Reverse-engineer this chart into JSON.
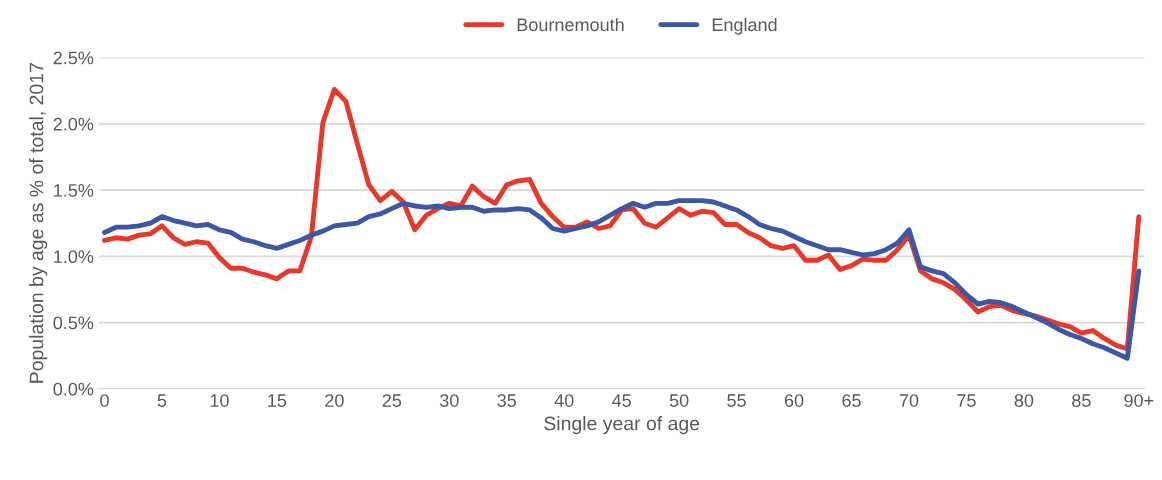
{
  "chart_data": {
    "type": "line",
    "xlabel": "Single year of age",
    "ylabel": "Population by age as % of total, 2017",
    "categories": [
      "0",
      null,
      null,
      null,
      null,
      "5",
      null,
      null,
      null,
      null,
      "10",
      null,
      null,
      null,
      null,
      "15",
      null,
      null,
      null,
      null,
      "20",
      null,
      null,
      null,
      null,
      "25",
      null,
      null,
      null,
      null,
      "30",
      null,
      null,
      null,
      null,
      "35",
      null,
      null,
      null,
      null,
      "40",
      null,
      null,
      null,
      null,
      "45",
      null,
      null,
      null,
      null,
      "50",
      null,
      null,
      null,
      null,
      "55",
      null,
      null,
      null,
      null,
      "60",
      null,
      null,
      null,
      null,
      "65",
      null,
      null,
      null,
      null,
      "70",
      null,
      null,
      null,
      null,
      "75",
      null,
      null,
      null,
      null,
      "80",
      null,
      null,
      null,
      null,
      "85",
      null,
      null,
      null,
      null,
      "90+"
    ],
    "series": [
      {
        "name": "Bournemouth",
        "color": "#e8382a",
        "values": [
          1.12,
          1.14,
          1.13,
          1.16,
          1.17,
          1.23,
          1.14,
          1.09,
          1.11,
          1.1,
          0.99,
          0.91,
          0.91,
          0.88,
          0.86,
          0.83,
          0.89,
          0.89,
          1.15,
          2.01,
          2.26,
          2.17,
          1.85,
          1.54,
          1.42,
          1.49,
          1.41,
          1.2,
          1.31,
          1.36,
          1.4,
          1.38,
          1.53,
          1.45,
          1.4,
          1.54,
          1.57,
          1.58,
          1.4,
          1.3,
          1.22,
          1.22,
          1.26,
          1.21,
          1.23,
          1.35,
          1.36,
          1.25,
          1.22,
          1.29,
          1.36,
          1.31,
          1.34,
          1.33,
          1.24,
          1.24,
          1.18,
          1.14,
          1.08,
          1.06,
          1.08,
          0.97,
          0.97,
          1.01,
          0.9,
          0.93,
          0.98,
          0.97,
          0.97,
          1.05,
          1.16,
          0.89,
          0.83,
          0.8,
          0.75,
          0.67,
          0.58,
          0.62,
          0.63,
          0.59,
          0.57,
          0.55,
          0.52,
          0.49,
          0.47,
          0.42,
          0.44,
          0.38,
          0.33,
          0.3,
          1.3
        ]
      },
      {
        "name": "England",
        "color": "#3c57a8",
        "values": [
          1.18,
          1.22,
          1.22,
          1.23,
          1.25,
          1.3,
          1.27,
          1.25,
          1.23,
          1.24,
          1.2,
          1.18,
          1.13,
          1.11,
          1.08,
          1.06,
          1.09,
          1.12,
          1.16,
          1.19,
          1.23,
          1.24,
          1.25,
          1.3,
          1.32,
          1.36,
          1.4,
          1.38,
          1.37,
          1.38,
          1.36,
          1.37,
          1.37,
          1.34,
          1.35,
          1.35,
          1.36,
          1.35,
          1.29,
          1.21,
          1.19,
          1.21,
          1.23,
          1.26,
          1.31,
          1.36,
          1.4,
          1.37,
          1.4,
          1.4,
          1.42,
          1.42,
          1.42,
          1.41,
          1.38,
          1.35,
          1.3,
          1.24,
          1.21,
          1.19,
          1.15,
          1.11,
          1.08,
          1.05,
          1.05,
          1.03,
          1.01,
          1.02,
          1.05,
          1.1,
          1.2,
          0.92,
          0.89,
          0.87,
          0.8,
          0.71,
          0.64,
          0.66,
          0.65,
          0.62,
          0.58,
          0.54,
          0.5,
          0.45,
          0.41,
          0.38,
          0.34,
          0.31,
          0.27,
          0.23,
          0.89
        ]
      }
    ],
    "ylim": [
      0,
      2.5
    ],
    "yticks": [
      {
        "value": 0,
        "label": "0.0%"
      },
      {
        "value": 0.5,
        "label": "0.5%"
      },
      {
        "value": 1.0,
        "label": "1.0%"
      },
      {
        "value": 1.5,
        "label": "1.5%"
      },
      {
        "value": 2.0,
        "label": "2.0%"
      },
      {
        "value": 2.5,
        "label": "2.5%"
      }
    ],
    "grid": "y",
    "legend": "top",
    "marker": "none",
    "line_style": "solid"
  }
}
